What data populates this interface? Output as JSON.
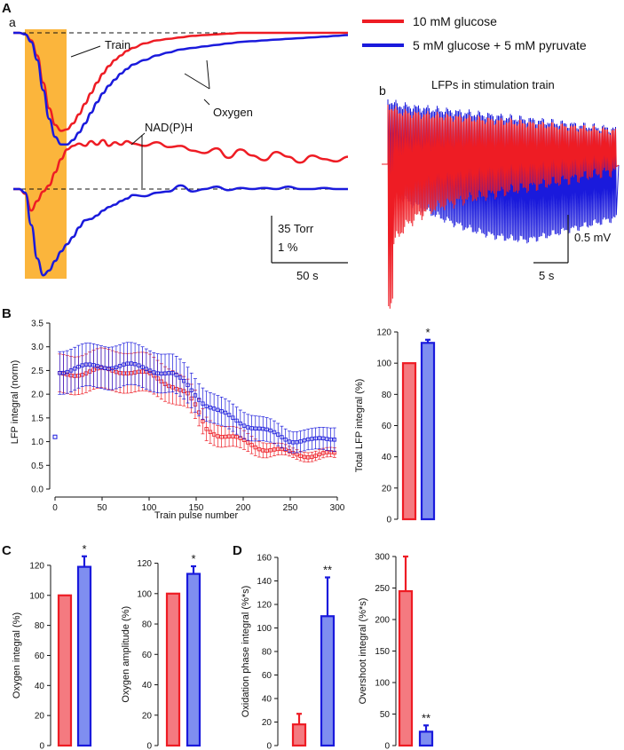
{
  "panel_labels": {
    "A": "A",
    "a": "a",
    "b": "b",
    "B": "B",
    "C": "C",
    "D": "D"
  },
  "legend": {
    "red_label": "10 mM glucose",
    "blue_label": "5 mM glucose + 5 mM pyruvate",
    "red_color": "#ee1c24",
    "blue_color": "#1a1adc",
    "red_fill": "#f47a80",
    "blue_fill": "#7f8ef0"
  },
  "chart_data": [
    {
      "id": "Aa",
      "type": "line",
      "title": "",
      "annotations": [
        "Train",
        "Oxygen",
        "NAD(P)H"
      ],
      "stimulus_color": "#fbb53c",
      "scalebar": {
        "vertical": [
          "35 Torr",
          "1 %"
        ],
        "horizontal": "50 s"
      },
      "t": [
        0,
        5,
        10,
        15,
        20,
        25,
        30,
        35,
        40,
        45,
        50,
        55,
        60,
        65,
        70,
        75,
        80,
        85,
        90,
        95,
        100,
        110,
        120,
        130,
        140,
        150,
        160,
        170,
        180,
        190,
        200,
        210,
        220,
        230,
        240,
        250,
        260,
        270,
        280
      ],
      "series": [
        {
          "name": "Oxygen (10 mM glucose)",
          "color": "red",
          "values": [
            0,
            0,
            -1,
            -5,
            -15,
            -33,
            -50,
            -61,
            -65,
            -64,
            -60,
            -54,
            -47,
            -40,
            -33,
            -27,
            -22,
            -18,
            -15,
            -12,
            -10,
            -7,
            -5,
            -4,
            -3,
            -2,
            -1.5,
            -1,
            -0.5,
            0,
            0,
            0,
            0,
            0,
            0,
            0,
            0,
            0,
            0
          ]
        },
        {
          "name": "Oxygen (5 mM glucose + 5 mM pyruvate)",
          "color": "blue",
          "values": [
            0,
            0,
            -1,
            -6,
            -18,
            -38,
            -57,
            -69,
            -74,
            -74,
            -71,
            -66,
            -60,
            -53,
            -46,
            -40,
            -35,
            -31,
            -27,
            -24,
            -21,
            -18,
            -15,
            -13,
            -11,
            -10,
            -9,
            -8,
            -7,
            -6,
            -5.5,
            -5,
            -4.5,
            -4,
            -3.5,
            -3,
            -2.5,
            -2,
            -1.5
          ]
        },
        {
          "name": "NAD(P)H (10 mM glucose)",
          "color": "red",
          "values": [
            0,
            0,
            -4,
            -18,
            -10,
            -2,
            3,
            14,
            25,
            33,
            36,
            38,
            36,
            40,
            37,
            41,
            36,
            39,
            37,
            40,
            38,
            36,
            39,
            35,
            36,
            32,
            30,
            34,
            26,
            33,
            28,
            24,
            31,
            27,
            22,
            28,
            25,
            23,
            27
          ]
        },
        {
          "name": "NAD(P)H (5 mM glucose + 5 mM pyruvate)",
          "color": "blue",
          "values": [
            0,
            0,
            -3,
            -30,
            -58,
            -72,
            -68,
            -60,
            -52,
            -46,
            -40,
            -32,
            -26,
            -25,
            -22,
            -18,
            -15,
            -13,
            -10,
            -8,
            -5,
            -6,
            -3,
            -2,
            3,
            -2,
            0,
            2,
            -1,
            1,
            0,
            1,
            0,
            2,
            0,
            0,
            1,
            0,
            0
          ]
        }
      ]
    },
    {
      "id": "Ab",
      "type": "line",
      "title": "LFPs in stimulation train",
      "scalebar": {
        "vertical": "0.5 mV",
        "horizontal": "5 s"
      },
      "series": [
        {
          "name": "10 mM glucose",
          "color": "red"
        },
        {
          "name": "5 mM glucose + 5 mM pyruvate",
          "color": "blue"
        }
      ]
    },
    {
      "id": "B_scatter",
      "type": "scatter",
      "xlabel": "Train pulse number",
      "ylabel": "LFP integral (norm)",
      "xlim": [
        0,
        300
      ],
      "ylim": [
        0,
        3.5
      ],
      "xticks": [
        0,
        50,
        100,
        150,
        200,
        250,
        300
      ],
      "yticks": [
        0.0,
        0.5,
        1.0,
        1.5,
        2.0,
        2.5,
        3.0,
        3.5
      ],
      "first_point": {
        "x": 0,
        "y": 1.1
      },
      "series": [
        {
          "name": "10 mM glucose",
          "color": "red",
          "x": [
            5,
            25,
            50,
            75,
            100,
            125,
            140,
            150,
            160,
            175,
            200,
            225,
            250,
            275,
            298
          ],
          "y": [
            2.4,
            2.45,
            2.5,
            2.5,
            2.4,
            2.2,
            2.0,
            1.7,
            1.3,
            1.15,
            1.0,
            0.85,
            0.75,
            0.72,
            0.72
          ],
          "err": [
            0.4,
            0.4,
            0.42,
            0.42,
            0.4,
            0.35,
            0.3,
            0.3,
            0.25,
            0.22,
            0.2,
            0.15,
            0.1,
            0.1,
            0.1
          ]
        },
        {
          "name": "5 mM glucose + 5 mM pyruvate",
          "color": "blue",
          "x": [
            5,
            25,
            50,
            75,
            100,
            125,
            140,
            150,
            160,
            175,
            200,
            225,
            250,
            275,
            298
          ],
          "y": [
            2.5,
            2.55,
            2.6,
            2.6,
            2.55,
            2.4,
            2.2,
            2.0,
            1.8,
            1.6,
            1.4,
            1.2,
            1.05,
            1.0,
            1.1
          ],
          "err": [
            0.45,
            0.45,
            0.45,
            0.45,
            0.42,
            0.4,
            0.38,
            0.35,
            0.32,
            0.3,
            0.28,
            0.25,
            0.22,
            0.22,
            0.25
          ]
        }
      ]
    },
    {
      "id": "B_bar",
      "type": "bar",
      "ylabel": "Total LFP integral (%)",
      "ylim": [
        0,
        120
      ],
      "yticks": [
        0,
        20,
        40,
        60,
        80,
        100,
        120
      ],
      "categories": [
        "10 mM glucose",
        "5 mM glucose + 5 mM pyruvate"
      ],
      "values": [
        100,
        113
      ],
      "errors": [
        0,
        2
      ],
      "significance": [
        "",
        "*"
      ]
    },
    {
      "id": "C_integral",
      "type": "bar",
      "ylabel": "Oxygen integral (%)",
      "ylim": [
        0,
        130
      ],
      "yticks": [
        0,
        20,
        40,
        60,
        80,
        100,
        120
      ],
      "categories": [
        "10 mM glucose",
        "5 mM glucose + 5 mM pyruvate"
      ],
      "values": [
        100,
        119
      ],
      "errors": [
        0,
        7
      ],
      "significance": [
        "",
        "*"
      ]
    },
    {
      "id": "C_amplitude",
      "type": "bar",
      "ylabel": "Oxygen amplitude (%)",
      "ylim": [
        0,
        125
      ],
      "yticks": [
        0,
        20,
        40,
        60,
        80,
        100,
        120
      ],
      "categories": [
        "10 mM glucose",
        "5 mM glucose + 5 mM pyruvate"
      ],
      "values": [
        100,
        113
      ],
      "errors": [
        0,
        5
      ],
      "significance": [
        "",
        "*"
      ]
    },
    {
      "id": "D_oxidation",
      "type": "bar",
      "ylabel": "Oxidation phase integral (%*s)",
      "ylim": [
        0,
        160
      ],
      "yticks": [
        0,
        20,
        40,
        60,
        80,
        100,
        120,
        140,
        160
      ],
      "categories": [
        "10 mM glucose",
        "5 mM glucose + 5 mM pyruvate"
      ],
      "values": [
        18,
        110
      ],
      "errors": [
        9,
        33
      ],
      "significance": [
        "",
        "**"
      ]
    },
    {
      "id": "D_overshoot",
      "type": "bar",
      "ylabel": "Overshoot integral (%*s)",
      "ylim": [
        0,
        300
      ],
      "yticks": [
        0,
        50,
        100,
        150,
        200,
        250,
        300
      ],
      "categories": [
        "10 mM glucose",
        "5 mM glucose + 5 mM pyruvate"
      ],
      "values": [
        245,
        22
      ],
      "errors": [
        55,
        10
      ],
      "significance": [
        "",
        "**"
      ]
    }
  ]
}
